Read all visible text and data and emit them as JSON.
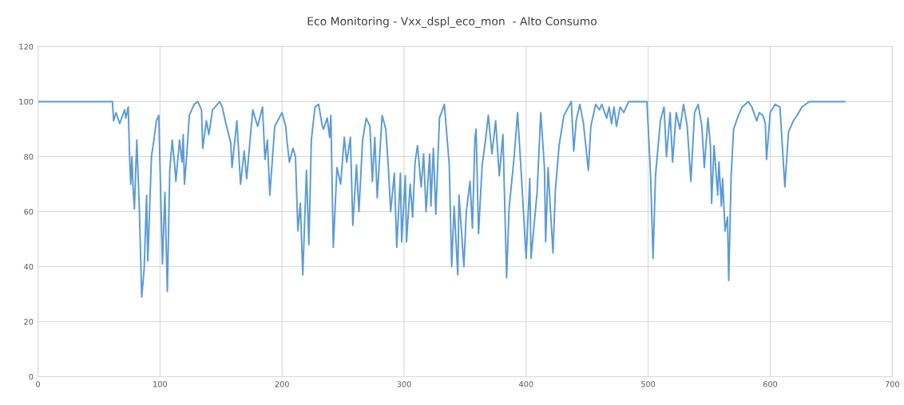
{
  "chart_data": {
    "type": "line",
    "title": "Eco Monitoring - Vxx_dspl_eco_mon  - Alto Consumo",
    "x": [
      0,
      61,
      62,
      64,
      67,
      71,
      72,
      74,
      75,
      76,
      77,
      78,
      79,
      81,
      83,
      85,
      87,
      89,
      90,
      93,
      95,
      97,
      99,
      102,
      104,
      106,
      108,
      110,
      112,
      113,
      116,
      118,
      119,
      120,
      122,
      124,
      128,
      131,
      134,
      135,
      138,
      140,
      143,
      149,
      151,
      154,
      158,
      159,
      163,
      166,
      169,
      171,
      176,
      180,
      184,
      186,
      188,
      190,
      194,
      200,
      203,
      204,
      206,
      209,
      211,
      213,
      215,
      217,
      220,
      222,
      224,
      227,
      230,
      233,
      234,
      237,
      239,
      240,
      242,
      245,
      248,
      251,
      253,
      256,
      258,
      261,
      263,
      266,
      269,
      272,
      274,
      276,
      278,
      282,
      285,
      287,
      289,
      292,
      294,
      297,
      298,
      301,
      302,
      305,
      307,
      309,
      311,
      314,
      316,
      318,
      321,
      322,
      324,
      326,
      329,
      333,
      337,
      339,
      341,
      344,
      345,
      349,
      351,
      354,
      356,
      358,
      359,
      361,
      364,
      367,
      369,
      372,
      375,
      378,
      381,
      384,
      386,
      390,
      393,
      396,
      400,
      403,
      404,
      409,
      412,
      415,
      416,
      418,
      420,
      422,
      424,
      427,
      431,
      437,
      439,
      441,
      444,
      447,
      451,
      453,
      457,
      460,
      462,
      466,
      468,
      470,
      472,
      474,
      477,
      480,
      484,
      499,
      502,
      504,
      506,
      510,
      513,
      515,
      518,
      520,
      523,
      526,
      529,
      532,
      535,
      538,
      541,
      544,
      546,
      549,
      551,
      552,
      554,
      557,
      558,
      560,
      561,
      563,
      565,
      566,
      568,
      570,
      574,
      577,
      582,
      585,
      589,
      591,
      594,
      596,
      597,
      600,
      604,
      608,
      612,
      615,
      619,
      622,
      626,
      632,
      661
    ],
    "series": [
      {
        "color": "#5b9bd5",
        "values": [
          100,
          100,
          93,
          96,
          92,
          97,
          94,
          98,
          81,
          70,
          80,
          68,
          61,
          86,
          62,
          29,
          39,
          66,
          42,
          80,
          86,
          93,
          95,
          41,
          67,
          31,
          75,
          86,
          77,
          71,
          86,
          78,
          88,
          70,
          81,
          95,
          99,
          100,
          97,
          83,
          93,
          88,
          97,
          100,
          98,
          92,
          85,
          76,
          93,
          70,
          82,
          72,
          97,
          91,
          98,
          79,
          86,
          66,
          91,
          96,
          91,
          86,
          78,
          83,
          80,
          53,
          63,
          37,
          75,
          48,
          86,
          98,
          99,
          91,
          90,
          94,
          87,
          95,
          47,
          76,
          70,
          87,
          78,
          87,
          55,
          77,
          60,
          86,
          94,
          91,
          71,
          87,
          65,
          95,
          90,
          77,
          60,
          74,
          47,
          74,
          49,
          73,
          49,
          70,
          58,
          78,
          84,
          69,
          81,
          60,
          81,
          62,
          83,
          59,
          94,
          99,
          77,
          40,
          62,
          37,
          66,
          40,
          60,
          71,
          54,
          86,
          90,
          52,
          77,
          87,
          95,
          81,
          93,
          73,
          88,
          36,
          61,
          79,
          96,
          74,
          43,
          72,
          43,
          67,
          96,
          76,
          49,
          76,
          60,
          45,
          68,
          84,
          95,
          100,
          82,
          93,
          99,
          92,
          75,
          91,
          99,
          97,
          99,
          94,
          98,
          92,
          98,
          91,
          98,
          96,
          100,
          100,
          73,
          43,
          73,
          93,
          98,
          80,
          96,
          78,
          96,
          90,
          99,
          91,
          71,
          96,
          99,
          91,
          76,
          94,
          84,
          63,
          84,
          66,
          78,
          62,
          72,
          53,
          58,
          35,
          73,
          90,
          95,
          98,
          100,
          98,
          93,
          96,
          95,
          92,
          79,
          96,
          99,
          98,
          69,
          89,
          93,
          95,
          98,
          100,
          100
        ]
      }
    ],
    "xlim": [
      0,
      700
    ],
    "xticks": [
      0,
      100,
      200,
      300,
      400,
      500,
      600,
      700
    ],
    "ylim": [
      0,
      120
    ],
    "yticks": [
      0,
      20,
      40,
      60,
      80,
      100,
      120
    ],
    "grid": true,
    "marker": "none",
    "line_style": "solid"
  }
}
